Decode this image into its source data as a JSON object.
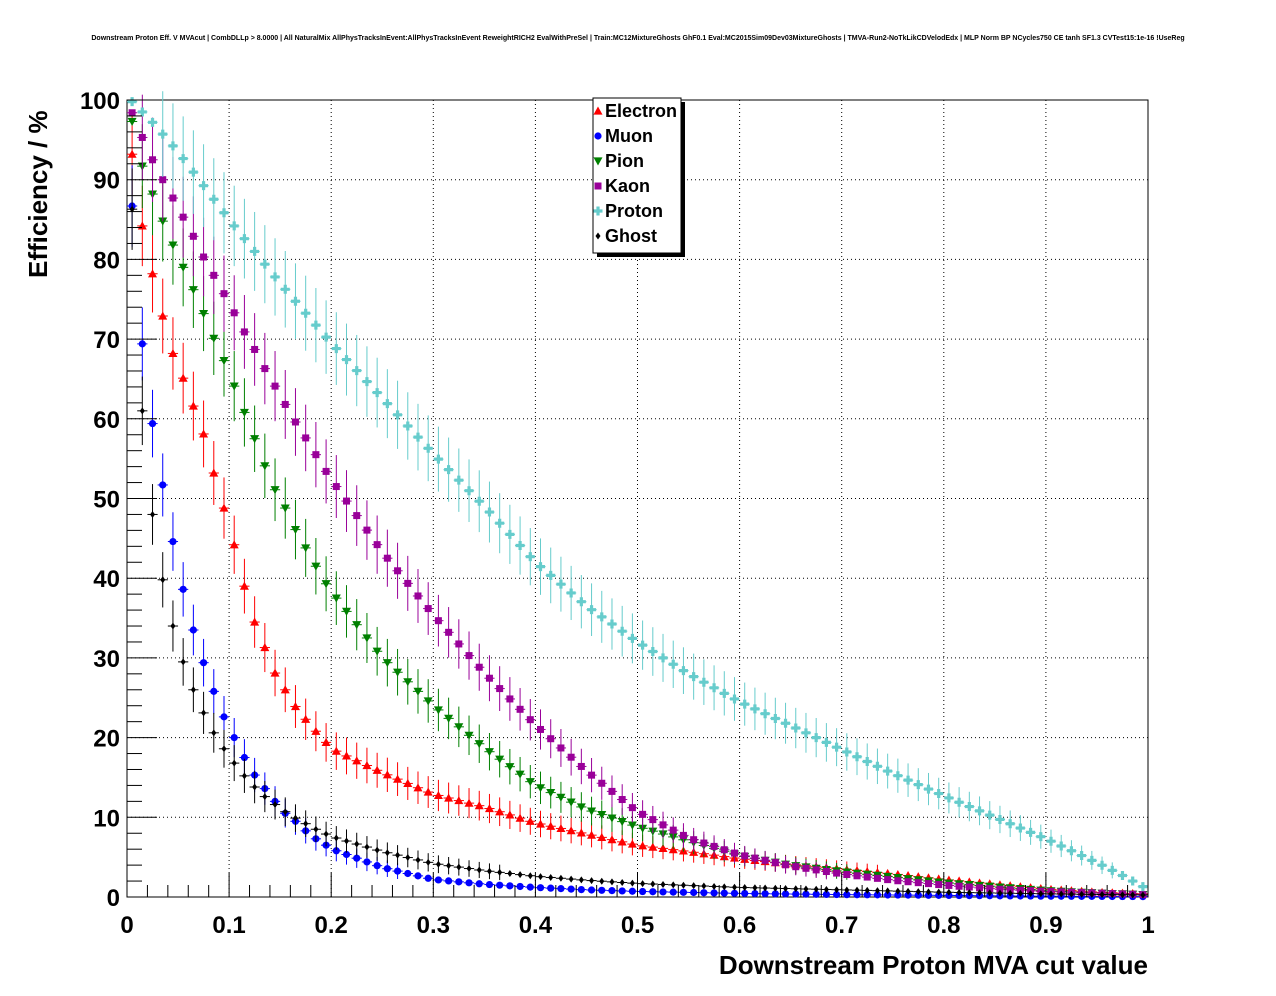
{
  "chart_data": {
    "type": "scatter",
    "title": "Downstream Proton Eff. V MVAcut | CombDLLp > 8.0000 | All NaturalMix AllPhysTracksInEvent:AllPhysTracksInEvent ReweightRICH2 EvalWithPreSel | Train:MC12MixtureGhosts GhF0.1 Eval:MC2015Sim09Dev03MixtureGhosts | TMVA-Run2-NoTkLikCDVelodEdx | MLP Norm BP NCycles750 CE tanh SF1.3 CVTest15:1e-16 !UseReg",
    "xlabel": "Downstream Proton MVA cut value",
    "ylabel": "Efficiency / %",
    "xlim": [
      0,
      1
    ],
    "ylim": [
      0,
      100
    ],
    "xticks": [
      "0",
      "0.1",
      "0.2",
      "0.3",
      "0.4",
      "0.5",
      "0.6",
      "0.7",
      "0.8",
      "0.9",
      "1"
    ],
    "yticks": [
      "0",
      "10",
      "20",
      "30",
      "40",
      "50",
      "60",
      "70",
      "80",
      "90",
      "100"
    ],
    "grid": true,
    "legend_position": "top-center",
    "x_bin_width": 0.01,
    "series": [
      {
        "name": "Electron",
        "color": "#ff0000",
        "marker": "triangle-up",
        "anchors": [
          [
            0.005,
            93.2
          ],
          [
            0.015,
            84.2
          ],
          [
            0.025,
            78.2
          ],
          [
            0.035,
            72.9
          ],
          [
            0.045,
            68.2
          ],
          [
            0.055,
            65.1
          ],
          [
            0.065,
            61.6
          ],
          [
            0.075,
            58.1
          ],
          [
            0.085,
            53.2
          ],
          [
            0.095,
            48.8
          ],
          [
            0.105,
            44.2
          ],
          [
            0.115,
            39.0
          ],
          [
            0.125,
            34.5
          ],
          [
            0.135,
            31.3
          ],
          [
            0.145,
            28.1
          ],
          [
            0.155,
            26.0
          ],
          [
            0.165,
            23.9
          ],
          [
            0.175,
            22.3
          ],
          [
            0.185,
            20.8
          ],
          [
            0.195,
            19.4
          ],
          [
            0.205,
            18.3
          ],
          [
            0.25,
            15.6
          ],
          [
            0.3,
            12.9
          ],
          [
            0.35,
            11.3
          ],
          [
            0.4,
            9.3
          ],
          [
            0.45,
            7.9
          ],
          [
            0.5,
            6.5
          ],
          [
            0.55,
            5.7
          ],
          [
            0.6,
            4.8
          ],
          [
            0.65,
            4.1
          ],
          [
            0.7,
            3.5
          ],
          [
            0.75,
            2.9
          ],
          [
            0.8,
            2.2
          ],
          [
            0.85,
            1.6
          ],
          [
            0.9,
            1.0
          ],
          [
            0.95,
            0.6
          ],
          [
            0.995,
            0.4
          ]
        ]
      },
      {
        "name": "Muon",
        "color": "#0000ff",
        "marker": "circle",
        "anchors": [
          [
            0.005,
            86.7
          ],
          [
            0.015,
            69.4
          ],
          [
            0.025,
            59.4
          ],
          [
            0.035,
            51.7
          ],
          [
            0.045,
            44.6
          ],
          [
            0.055,
            38.6
          ],
          [
            0.065,
            33.5
          ],
          [
            0.075,
            29.4
          ],
          [
            0.085,
            25.8
          ],
          [
            0.095,
            22.6
          ],
          [
            0.105,
            20.0
          ],
          [
            0.115,
            17.5
          ],
          [
            0.125,
            15.3
          ],
          [
            0.135,
            13.6
          ],
          [
            0.145,
            12.0
          ],
          [
            0.155,
            10.5
          ],
          [
            0.165,
            9.5
          ],
          [
            0.175,
            8.3
          ],
          [
            0.185,
            7.3
          ],
          [
            0.195,
            6.5
          ],
          [
            0.205,
            5.8
          ],
          [
            0.25,
            3.7
          ],
          [
            0.3,
            2.2
          ],
          [
            0.35,
            1.6
          ],
          [
            0.4,
            1.2
          ],
          [
            0.45,
            0.9
          ],
          [
            0.5,
            0.7
          ],
          [
            0.6,
            0.45
          ],
          [
            0.7,
            0.3
          ],
          [
            0.8,
            0.2
          ],
          [
            0.9,
            0.1
          ],
          [
            0.995,
            0.05
          ]
        ]
      },
      {
        "name": "Pion",
        "color": "#008000",
        "marker": "triangle-down",
        "anchors": [
          [
            0.005,
            97.3
          ],
          [
            0.015,
            91.7
          ],
          [
            0.025,
            88.2
          ],
          [
            0.035,
            84.8
          ],
          [
            0.045,
            81.8
          ],
          [
            0.055,
            79.0
          ],
          [
            0.065,
            76.2
          ],
          [
            0.075,
            73.2
          ],
          [
            0.085,
            70.1
          ],
          [
            0.095,
            67.3
          ],
          [
            0.105,
            64.1
          ],
          [
            0.115,
            60.8
          ],
          [
            0.125,
            57.5
          ],
          [
            0.135,
            54.1
          ],
          [
            0.145,
            51.1
          ],
          [
            0.155,
            48.8
          ],
          [
            0.165,
            46.1
          ],
          [
            0.175,
            43.8
          ],
          [
            0.185,
            41.5
          ],
          [
            0.195,
            39.3
          ],
          [
            0.205,
            37.5
          ],
          [
            0.25,
            30.0
          ],
          [
            0.3,
            24.0
          ],
          [
            0.35,
            18.7
          ],
          [
            0.4,
            14.0
          ],
          [
            0.45,
            11.0
          ],
          [
            0.5,
            8.8
          ],
          [
            0.55,
            7.0
          ],
          [
            0.6,
            5.2
          ],
          [
            0.65,
            4.0
          ],
          [
            0.7,
            3.2
          ],
          [
            0.75,
            2.5
          ],
          [
            0.8,
            1.8
          ],
          [
            0.85,
            1.3
          ],
          [
            0.9,
            0.8
          ],
          [
            0.95,
            0.5
          ],
          [
            0.995,
            0.3
          ]
        ]
      },
      {
        "name": "Kaon",
        "color": "#990099",
        "marker": "square",
        "anchors": [
          [
            0.005,
            98.4
          ],
          [
            0.015,
            95.3
          ],
          [
            0.025,
            92.5
          ],
          [
            0.035,
            90.0
          ],
          [
            0.045,
            87.7
          ],
          [
            0.055,
            85.3
          ],
          [
            0.065,
            82.9
          ],
          [
            0.075,
            80.3
          ],
          [
            0.085,
            78.0
          ],
          [
            0.095,
            75.7
          ],
          [
            0.105,
            73.3
          ],
          [
            0.115,
            70.9
          ],
          [
            0.125,
            68.7
          ],
          [
            0.135,
            66.3
          ],
          [
            0.145,
            64.1
          ],
          [
            0.155,
            61.8
          ],
          [
            0.165,
            59.6
          ],
          [
            0.175,
            57.6
          ],
          [
            0.185,
            55.5
          ],
          [
            0.195,
            53.4
          ],
          [
            0.205,
            51.5
          ],
          [
            0.25,
            43.3
          ],
          [
            0.3,
            35.4
          ],
          [
            0.35,
            28.1
          ],
          [
            0.4,
            21.6
          ],
          [
            0.45,
            15.8
          ],
          [
            0.5,
            10.7
          ],
          [
            0.55,
            7.4
          ],
          [
            0.6,
            5.3
          ],
          [
            0.65,
            3.9
          ],
          [
            0.7,
            2.9
          ],
          [
            0.75,
            2.1
          ],
          [
            0.8,
            1.5
          ],
          [
            0.85,
            1.0
          ],
          [
            0.9,
            0.7
          ],
          [
            0.95,
            0.5
          ],
          [
            0.995,
            0.3
          ]
        ]
      },
      {
        "name": "Proton",
        "color": "#66cccc",
        "marker": "cross",
        "anchors": [
          [
            0.005,
            99.8
          ],
          [
            0.015,
            98.5
          ],
          [
            0.025,
            97.2
          ],
          [
            0.05,
            93.5
          ],
          [
            0.1,
            85.0
          ],
          [
            0.15,
            77.0
          ],
          [
            0.2,
            69.5
          ],
          [
            0.25,
            62.6
          ],
          [
            0.3,
            55.6
          ],
          [
            0.35,
            49.0
          ],
          [
            0.4,
            42.0
          ],
          [
            0.45,
            36.5
          ],
          [
            0.5,
            32.0
          ],
          [
            0.55,
            28.0
          ],
          [
            0.6,
            24.5
          ],
          [
            0.65,
            21.5
          ],
          [
            0.7,
            18.5
          ],
          [
            0.75,
            15.5
          ],
          [
            0.8,
            12.7
          ],
          [
            0.85,
            10.0
          ],
          [
            0.9,
            7.3
          ],
          [
            0.95,
            4.3
          ],
          [
            0.975,
            2.7
          ],
          [
            0.995,
            1.3
          ]
        ]
      },
      {
        "name": "Ghost",
        "color": "#000000",
        "marker": "diamond",
        "anchors": [
          [
            0.005,
            86.3
          ],
          [
            0.015,
            61.0
          ],
          [
            0.025,
            48.0
          ],
          [
            0.035,
            39.8
          ],
          [
            0.045,
            34.0
          ],
          [
            0.055,
            29.5
          ],
          [
            0.065,
            26.0
          ],
          [
            0.075,
            23.1
          ],
          [
            0.085,
            20.6
          ],
          [
            0.095,
            18.6
          ],
          [
            0.105,
            16.8
          ],
          [
            0.115,
            15.2
          ],
          [
            0.125,
            13.8
          ],
          [
            0.135,
            12.6
          ],
          [
            0.145,
            11.6
          ],
          [
            0.155,
            10.7
          ],
          [
            0.165,
            9.9
          ],
          [
            0.175,
            9.2
          ],
          [
            0.185,
            8.5
          ],
          [
            0.195,
            7.9
          ],
          [
            0.205,
            7.4
          ],
          [
            0.25,
            5.7
          ],
          [
            0.3,
            4.2
          ],
          [
            0.35,
            3.3
          ],
          [
            0.4,
            2.6
          ],
          [
            0.45,
            2.1
          ],
          [
            0.5,
            1.7
          ],
          [
            0.6,
            1.2
          ],
          [
            0.7,
            0.9
          ],
          [
            0.8,
            0.6
          ],
          [
            0.9,
            0.4
          ],
          [
            0.995,
            0.25
          ]
        ]
      }
    ]
  }
}
